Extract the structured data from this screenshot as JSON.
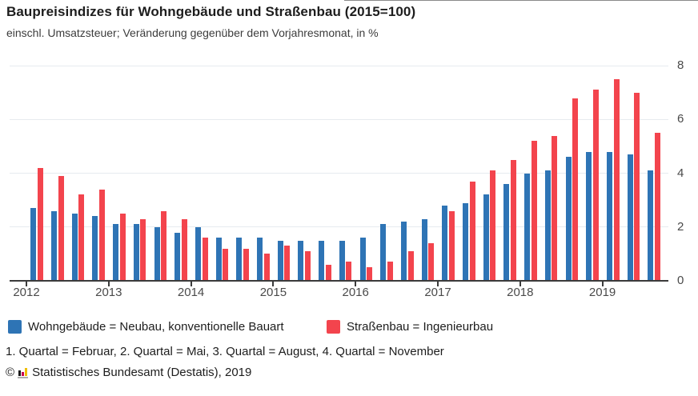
{
  "header": {
    "title": "Baupreisindizes für Wohngebäude und Straßenbau (2015=100)",
    "subtitle": "einschl. Umsatzsteuer; Veränderung gegenüber dem Vorjahresmonat, in %"
  },
  "chart_data": {
    "type": "bar",
    "title": "Baupreisindizes für Wohngebäude und Straßenbau (2015=100)",
    "subtitle": "einschl. Umsatzsteuer; Veränderung gegenüber dem Vorjahresmonat, in %",
    "categories": [
      "2012 Q1",
      "2012 Q2",
      "2012 Q3",
      "2012 Q4",
      "2013 Q1",
      "2013 Q2",
      "2013 Q3",
      "2013 Q4",
      "2014 Q1",
      "2014 Q2",
      "2014 Q3",
      "2014 Q4",
      "2015 Q1",
      "2015 Q2",
      "2015 Q3",
      "2015 Q4",
      "2016 Q1",
      "2016 Q2",
      "2016 Q3",
      "2016 Q4",
      "2017 Q1",
      "2017 Q2",
      "2017 Q3",
      "2017 Q4",
      "2018 Q1",
      "2018 Q2",
      "2018 Q3",
      "2018 Q4",
      "2019 Q1",
      "2019 Q2",
      "2019 Q3"
    ],
    "x_tick_labels": [
      "2012",
      "2013",
      "2014",
      "2015",
      "2016",
      "2017",
      "2018",
      "2019"
    ],
    "series": [
      {
        "name": "Wohngebäude = Neubau, konventionelle Bauart",
        "color": "#2e74b5",
        "values": [
          2.7,
          2.6,
          2.5,
          2.4,
          2.1,
          2.1,
          2.0,
          1.8,
          2.0,
          1.6,
          1.6,
          1.6,
          1.5,
          1.5,
          1.5,
          1.5,
          1.6,
          2.1,
          2.2,
          2.3,
          2.8,
          2.9,
          3.2,
          3.6,
          4.0,
          4.1,
          4.6,
          4.8,
          4.8,
          4.7,
          4.1
        ]
      },
      {
        "name": "Straßenbau = Ingenieurbau",
        "color": "#f3444d",
        "values": [
          4.2,
          3.9,
          3.2,
          3.4,
          2.5,
          2.3,
          2.6,
          2.3,
          1.6,
          1.2,
          1.2,
          1.0,
          1.3,
          1.1,
          0.6,
          0.7,
          0.5,
          0.7,
          1.1,
          1.4,
          2.6,
          3.7,
          4.1,
          4.5,
          5.2,
          5.4,
          6.8,
          7.1,
          7.5,
          7.0,
          5.5
        ]
      }
    ],
    "ylim": [
      0,
      8
    ],
    "yticks": [
      0,
      2,
      4,
      6,
      8
    ],
    "y_axis_side": "right",
    "grid": "horizontal",
    "legend_position": "bottom"
  },
  "footnote": "1. Quartal = Februar, 2. Quartal = Mai, 3. Quartal = August, 4. Quartal = November",
  "copyright": {
    "symbol": "©",
    "logo": "destatis-bars-logo",
    "text": "Statistisches Bundesamt (Destatis), 2019"
  }
}
